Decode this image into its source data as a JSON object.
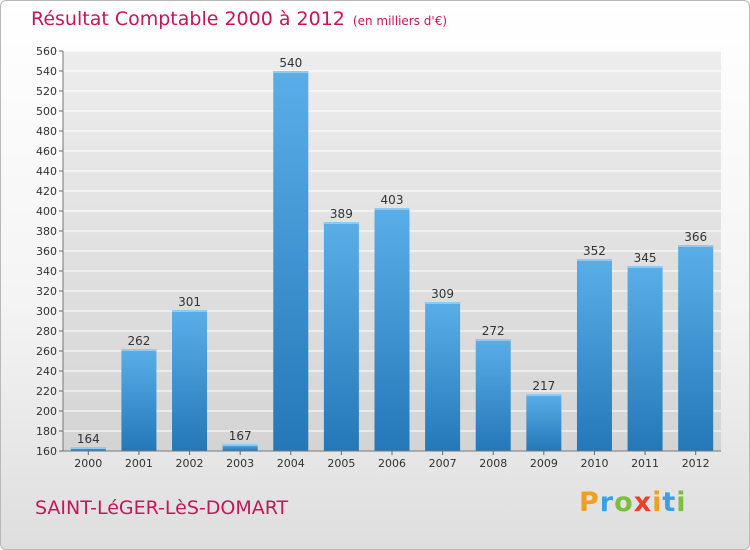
{
  "title": "Résultat Comptable 2000 à 2012",
  "unit_note": "(en milliers d'€)",
  "commune": "SAINT-LéGER-LèS-DOMART",
  "brand": {
    "letters": [
      "P",
      "r",
      "o",
      "x",
      "i",
      "t",
      "i"
    ],
    "colors": [
      "#f0a020",
      "#3aa0e0",
      "#7cbf3c",
      "#e8402a",
      "#f0a020",
      "#3aa0e0",
      "#7cbf3c"
    ]
  },
  "colors": {
    "title": "#c2185b",
    "bar_light": "#5aaee8",
    "bar_dark": "#2478b8",
    "grid": "#ffffff",
    "plot_bg_top": "#ececec",
    "plot_bg_bottom": "#d6d6d6"
  },
  "chart_data": {
    "type": "bar",
    "categories": [
      "2000",
      "2001",
      "2002",
      "2003",
      "2004",
      "2005",
      "2006",
      "2007",
      "2008",
      "2009",
      "2010",
      "2011",
      "2012"
    ],
    "values": [
      164,
      262,
      301,
      167,
      540,
      389,
      403,
      309,
      272,
      217,
      352,
      345,
      366
    ],
    "ylim": [
      160,
      560
    ],
    "yticks": [
      160,
      180,
      200,
      220,
      240,
      260,
      280,
      300,
      320,
      340,
      360,
      380,
      400,
      420,
      440,
      460,
      480,
      500,
      520,
      540,
      560
    ],
    "grid": true,
    "legend": "none"
  }
}
